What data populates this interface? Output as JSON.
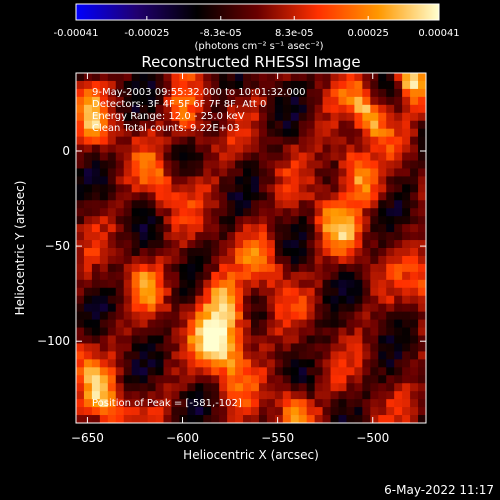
{
  "chart_data": {
    "type": "heatmap",
    "title": "Reconstructed RHESSI Image",
    "xlabel": "Heliocentric X (arcsec)",
    "ylabel": "Heliocentric Y (arcsec)",
    "xlim": [
      -656,
      -472
    ],
    "ylim": [
      -143,
      41
    ],
    "x_ticks": [
      -650,
      -600,
      -550,
      -500
    ],
    "y_ticks": [
      -100,
      -50,
      0
    ],
    "colorbar": {
      "label": "(photons cm⁻² s⁻¹ asec⁻²)",
      "range": [
        -0.00041,
        0.00041
      ],
      "tick_labels": [
        "-0.00041",
        "-0.00025",
        "-8.3e-05",
        "8.3e-05",
        "0.00025",
        "0.00041"
      ],
      "colormap": [
        "#0000ff",
        "#200070",
        "#000000",
        "#6a0000",
        "#ff3000",
        "#ff9800",
        "#ffffd0"
      ]
    },
    "info_lines": [
      "9-May-2003 09:55:32.000 to 10:01:32.000",
      "Detectors: 3F 4F 5F 6F 7F 8F, Att 0",
      "Energy Range: 12.0 - 25.0 keV",
      "Clean    Total counts: 9.22E+03"
    ],
    "peak_label": "Position of Peak = [-581,-102]",
    "peak": {
      "x": -581,
      "y": -102
    },
    "grid": false
  },
  "timestamp": "6-May-2022 11:17"
}
